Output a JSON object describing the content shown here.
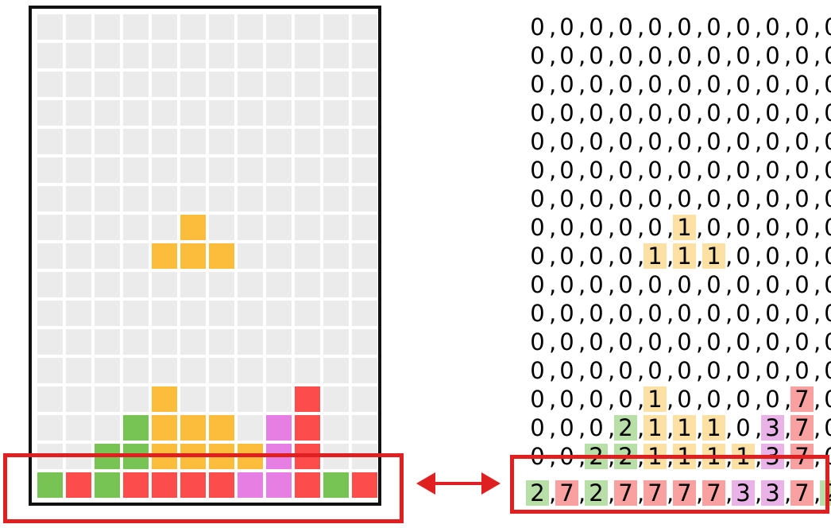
{
  "board": {
    "cols": 12,
    "rows": 17,
    "grid": [
      [
        0,
        0,
        0,
        0,
        0,
        0,
        0,
        0,
        0,
        0,
        0,
        0
      ],
      [
        0,
        0,
        0,
        0,
        0,
        0,
        0,
        0,
        0,
        0,
        0,
        0
      ],
      [
        0,
        0,
        0,
        0,
        0,
        0,
        0,
        0,
        0,
        0,
        0,
        0
      ],
      [
        0,
        0,
        0,
        0,
        0,
        0,
        0,
        0,
        0,
        0,
        0,
        0
      ],
      [
        0,
        0,
        0,
        0,
        0,
        0,
        0,
        0,
        0,
        0,
        0,
        0
      ],
      [
        0,
        0,
        0,
        0,
        0,
        0,
        0,
        0,
        0,
        0,
        0,
        0
      ],
      [
        0,
        0,
        0,
        0,
        0,
        0,
        0,
        0,
        0,
        0,
        0,
        0
      ],
      [
        0,
        0,
        0,
        0,
        0,
        1,
        0,
        0,
        0,
        0,
        0,
        0
      ],
      [
        0,
        0,
        0,
        0,
        1,
        1,
        1,
        0,
        0,
        0,
        0,
        0
      ],
      [
        0,
        0,
        0,
        0,
        0,
        0,
        0,
        0,
        0,
        0,
        0,
        0
      ],
      [
        0,
        0,
        0,
        0,
        0,
        0,
        0,
        0,
        0,
        0,
        0,
        0
      ],
      [
        0,
        0,
        0,
        0,
        0,
        0,
        0,
        0,
        0,
        0,
        0,
        0
      ],
      [
        0,
        0,
        0,
        0,
        0,
        0,
        0,
        0,
        0,
        0,
        0,
        0
      ],
      [
        0,
        0,
        0,
        0,
        1,
        0,
        0,
        0,
        0,
        7,
        0,
        0
      ],
      [
        0,
        0,
        0,
        2,
        1,
        1,
        1,
        0,
        3,
        7,
        0,
        0
      ],
      [
        0,
        0,
        2,
        2,
        1,
        1,
        1,
        1,
        3,
        7,
        0,
        0
      ],
      [
        2,
        7,
        2,
        7,
        7,
        7,
        7,
        3,
        3,
        7,
        2,
        7
      ]
    ]
  },
  "colors": {
    "empty": "#ebebeb",
    "grid_line": "#ffffff",
    "piece_1": "#fcbc3c",
    "piece_2": "#77c454",
    "piece_3": "#e67ee3",
    "piece_7": "#fc4c4c",
    "text_highlight_1": "#fce0a4",
    "text_highlight_2": "#b7dfa7",
    "text_highlight_3": "#e9b3e8",
    "text_highlight_7": "#f9a0a0",
    "callout_box": "#e02020"
  },
  "matrix": {
    "separator": ",",
    "highlight_row": 16
  },
  "arrow": {
    "icon": "double-arrow-icon"
  }
}
